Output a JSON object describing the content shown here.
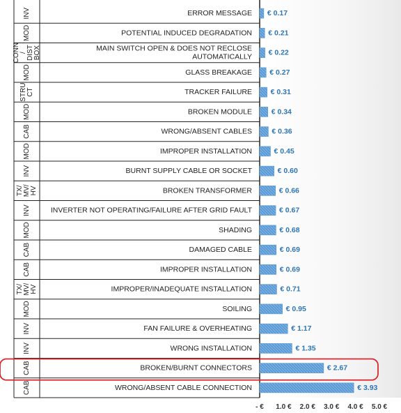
{
  "chart_data": {
    "type": "bar",
    "orientation": "horizontal",
    "currency": "€",
    "xlim": [
      0,
      5
    ],
    "xticks": [
      {
        "value": 0,
        "label": "- €"
      },
      {
        "value": 1,
        "label": "1.0 €"
      },
      {
        "value": 2,
        "label": "2.0 €"
      },
      {
        "value": 3,
        "label": "3.0 €"
      },
      {
        "value": 4,
        "label": "4.0 €"
      },
      {
        "value": 5,
        "label": "5.0 €"
      }
    ],
    "rows": [
      {
        "group": [
          "INV"
        ],
        "label": [
          "ERROR MESSAGE"
        ],
        "value": 0.17,
        "value_label": "€ 0.17"
      },
      {
        "group": [
          "MOD"
        ],
        "label": [
          "POTENTIAL INDUCED DEGRADATION"
        ],
        "value": 0.21,
        "value_label": "€ 0.21"
      },
      {
        "group": [
          "CONN",
          "/",
          "DIST",
          "BOX"
        ],
        "label": [
          "MAIN SWITCH OPEN & DOES NOT RECLOSE",
          "AUTOMATICALLY"
        ],
        "value": 0.22,
        "value_label": "€ 0.22"
      },
      {
        "group": [
          "MOD"
        ],
        "label": [
          "GLASS BREAKAGE"
        ],
        "value": 0.27,
        "value_label": "€ 0.27"
      },
      {
        "group": [
          "STRU",
          "CT"
        ],
        "label": [
          "TRACKER FAILURE"
        ],
        "value": 0.31,
        "value_label": "€ 0.31"
      },
      {
        "group": [
          "MOD"
        ],
        "label": [
          "BROKEN MODULE"
        ],
        "value": 0.34,
        "value_label": "€ 0.34"
      },
      {
        "group": [
          "CAB"
        ],
        "label": [
          "WRONG/ABSENT CABLES"
        ],
        "value": 0.36,
        "value_label": "€ 0.36"
      },
      {
        "group": [
          "MOD"
        ],
        "label": [
          "IMPROPER INSTALLATION"
        ],
        "value": 0.45,
        "value_label": "€ 0.45"
      },
      {
        "group": [
          "INV"
        ],
        "label": [
          "BURNT SUPPLY CABLE OR SOCKET"
        ],
        "value": 0.6,
        "value_label": "€ 0.60"
      },
      {
        "group": [
          "TX/",
          "MV/",
          "HV"
        ],
        "label": [
          "BROKEN TRANSFORMER"
        ],
        "value": 0.66,
        "value_label": "€ 0.66"
      },
      {
        "group": [
          "INV"
        ],
        "label": [
          "INVERTER NOT OPERATING/FAILURE AFTER GRID FAULT"
        ],
        "value": 0.67,
        "value_label": "€ 0.67"
      },
      {
        "group": [
          "MOD"
        ],
        "label": [
          "SHADING"
        ],
        "value": 0.68,
        "value_label": "€ 0.68"
      },
      {
        "group": [
          "CAB"
        ],
        "label": [
          "DAMAGED CABLE"
        ],
        "value": 0.69,
        "value_label": "€ 0.69"
      },
      {
        "group": [
          "CAB"
        ],
        "label": [
          "IMPROPER INSTALLATION"
        ],
        "value": 0.69,
        "value_label": "€ 0.69"
      },
      {
        "group": [
          "TX/",
          "MV/",
          "HV"
        ],
        "label": [
          "IMPROPER/INADEQUATE  INSTALLATION"
        ],
        "value": 0.71,
        "value_label": "€ 0.71"
      },
      {
        "group": [
          "MOD"
        ],
        "label": [
          "SOILING"
        ],
        "value": 0.95,
        "value_label": "€ 0.95"
      },
      {
        "group": [
          "INV"
        ],
        "label": [
          "FAN FAILURE & OVERHEATING"
        ],
        "value": 1.17,
        "value_label": "€ 1.17"
      },
      {
        "group": [
          "INV"
        ],
        "label": [
          "WRONG INSTALLATION"
        ],
        "value": 1.35,
        "value_label": "€ 1.35"
      },
      {
        "group": [
          "CAB"
        ],
        "label": [
          "BROKEN/BURNT CONNECTORS"
        ],
        "value": 2.67,
        "value_label": "€ 2.67",
        "highlight": true
      },
      {
        "group": [
          "CAB"
        ],
        "label": [
          "WRONG/ABSENT CABLE CONNECTION"
        ],
        "value": 3.93,
        "value_label": "€ 3.93"
      }
    ],
    "colors": {
      "bar": "#5b9bd5",
      "value_text": "#2e75b6",
      "highlight": "#d9262b"
    },
    "grid": false,
    "legend": "none"
  }
}
